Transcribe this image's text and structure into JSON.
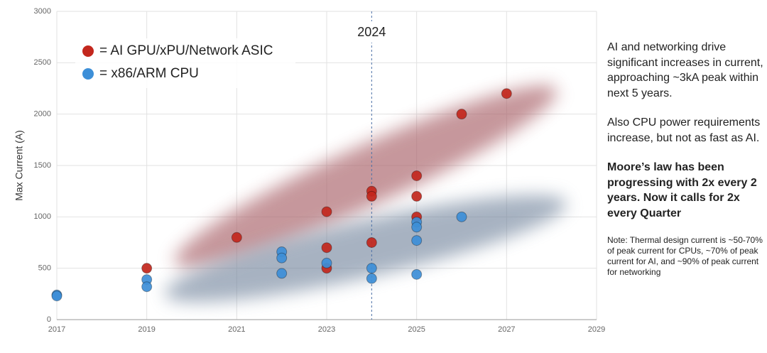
{
  "chart_data": {
    "type": "scatter",
    "y_label": "Max Current (A)",
    "xlim": [
      2017,
      2029
    ],
    "xticks": [
      2017,
      2019,
      2021,
      2023,
      2025,
      2027,
      2029
    ],
    "ylim": [
      0,
      3000
    ],
    "yticks": [
      0,
      500,
      1000,
      1500,
      2000,
      2500,
      3000
    ],
    "grid": true,
    "legend": "upper left",
    "reference_line": {
      "x": 2024
    },
    "series": [
      {
        "name": "= AI GPU/xPU/Network ASIC",
        "color": "#c3271d",
        "x": [
          2019,
          2021,
          2023,
          2023,
          2023,
          2024,
          2024,
          2024,
          2025,
          2025,
          2025,
          2026,
          2027
        ],
        "values": [
          500,
          800,
          1050,
          700,
          500,
          1250,
          1200,
          750,
          1400,
          1200,
          1000,
          2000,
          2200
        ]
      },
      {
        "name": "= x86/ARM CPU",
        "color": "#3d8fd8",
        "x": [
          2017,
          2017,
          2019,
          2019,
          2022,
          2022,
          2022,
          2023,
          2024,
          2024,
          2025,
          2025,
          2025,
          2025,
          2026
        ],
        "values": [
          240,
          230,
          390,
          320,
          660,
          600,
          450,
          550,
          500,
          400,
          950,
          900,
          770,
          440,
          1000
        ]
      }
    ],
    "notes": [
      {
        "text": "AI and networking drive significant increases in current, approaching ~3kA peak within next 5 years.",
        "bold": false
      },
      {
        "text": "Also CPU power requirements increase, but not as fast as AI.",
        "bold": false
      },
      {
        "text": "Moore’s law has been progressing with 2x every 2 years. Now it calls for 2x every Quarter",
        "bold": true
      },
      {
        "text": "Note: Thermal design current is ~50-70% of peak current for CPUs, ~70% of peak current for AI, and ~90% of peak current for networking",
        "bold": false,
        "small": true
      }
    ]
  }
}
